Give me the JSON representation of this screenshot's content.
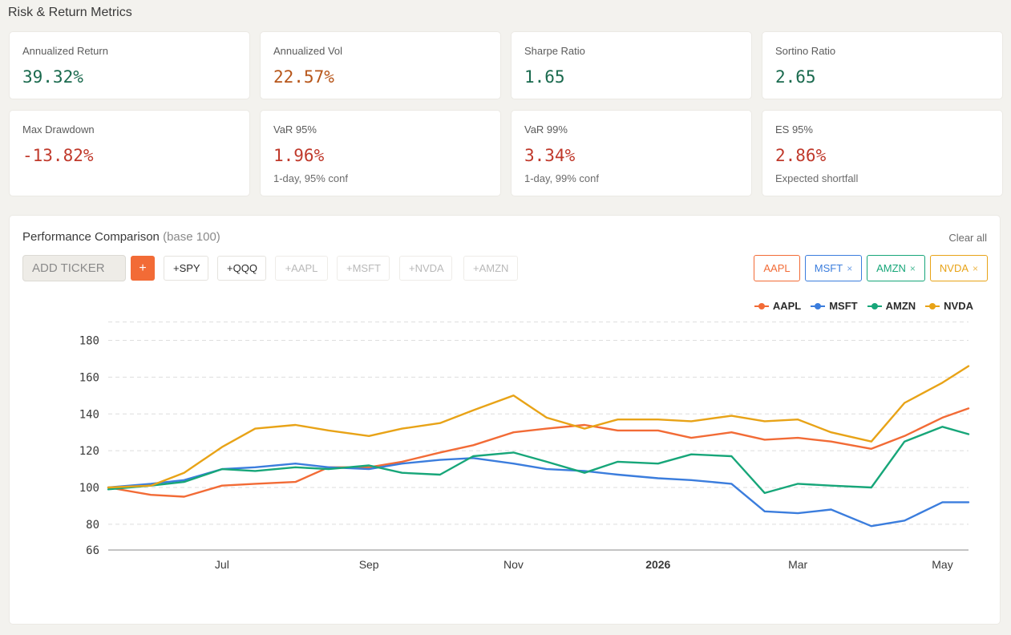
{
  "section_title": "Risk & Return Metrics",
  "metrics": [
    {
      "label": "Annualized Return",
      "value": "39.32%",
      "sub": "",
      "color": "#1a6a4e"
    },
    {
      "label": "Annualized Vol",
      "value": "22.57%",
      "sub": "",
      "color": "#b7561a"
    },
    {
      "label": "Sharpe Ratio",
      "value": "1.65",
      "sub": "",
      "color": "#1a6a4e"
    },
    {
      "label": "Sortino Ratio",
      "value": "2.65",
      "sub": "",
      "color": "#1a6a4e"
    },
    {
      "label": "Max Drawdown",
      "value": "-13.82%",
      "sub": "",
      "color": "#c0392b"
    },
    {
      "label": "VaR 95%",
      "value": "1.96%",
      "sub": "1-day, 95% conf",
      "color": "#c0392b"
    },
    {
      "label": "VaR 99%",
      "value": "3.34%",
      "sub": "1-day, 99% conf",
      "color": "#c0392b"
    },
    {
      "label": "ES 95%",
      "value": "2.86%",
      "sub": "Expected shortfall",
      "color": "#c0392b"
    }
  ],
  "perf": {
    "title": "Performance Comparison",
    "title_muted": "(base 100)",
    "clear_all": "Clear all",
    "input_placeholder": "ADD TICKER",
    "add_label": "+",
    "presets": [
      {
        "label": "+SPY",
        "enabled": true
      },
      {
        "label": "+QQQ",
        "enabled": true
      },
      {
        "label": "+AAPL",
        "enabled": false
      },
      {
        "label": "+MSFT",
        "enabled": false
      },
      {
        "label": "+NVDA",
        "enabled": false
      },
      {
        "label": "+AMZN",
        "enabled": false
      }
    ],
    "chips": [
      {
        "label": "AAPL",
        "removable": false,
        "color": "#f26b36"
      },
      {
        "label": "MSFT",
        "removable": true,
        "color": "#3b7ddd"
      },
      {
        "label": "AMZN",
        "removable": true,
        "color": "#17a679"
      },
      {
        "label": "NVDA",
        "removable": true,
        "color": "#e8a317"
      }
    ],
    "remove_glyph": "×"
  },
  "chart_data": {
    "type": "line",
    "title": "",
    "xlabel": "",
    "ylabel": "",
    "x_ticks": [
      {
        "label": "Jul",
        "date": "2025-07-01",
        "bold": false
      },
      {
        "label": "Sep",
        "date": "2025-09-01",
        "bold": false
      },
      {
        "label": "Nov",
        "date": "2025-11-01",
        "bold": false
      },
      {
        "label": "2026",
        "date": "2026-01-01",
        "bold": true
      },
      {
        "label": "Mar",
        "date": "2026-03-01",
        "bold": false
      },
      {
        "label": "May",
        "date": "2026-05-01",
        "bold": false
      }
    ],
    "xlim": [
      "2025-05-14",
      "2026-05-12"
    ],
    "y_ticks": [
      66,
      80,
      100,
      120,
      140,
      160,
      180
    ],
    "ylim": [
      66,
      192
    ],
    "grid": true,
    "legend_position": "top-right",
    "dates": [
      "2025-05-14",
      "2025-06-01",
      "2025-06-15",
      "2025-07-01",
      "2025-07-15",
      "2025-08-01",
      "2025-08-15",
      "2025-09-01",
      "2025-09-15",
      "2025-10-01",
      "2025-10-15",
      "2025-11-01",
      "2025-11-15",
      "2025-12-01",
      "2025-12-15",
      "2026-01-01",
      "2026-01-15",
      "2026-02-01",
      "2026-02-15",
      "2026-03-01",
      "2026-03-15",
      "2026-04-01",
      "2026-04-15",
      "2026-05-01",
      "2026-05-12"
    ],
    "series": [
      {
        "name": "AAPL",
        "color": "#f26b36",
        "values": [
          100,
          96,
          95,
          101,
          102,
          103,
          111,
          111,
          114,
          119,
          123,
          130,
          132,
          134,
          131,
          131,
          127,
          130,
          126,
          127,
          125,
          121,
          128,
          138,
          143
        ]
      },
      {
        "name": "MSFT",
        "color": "#3b7ddd",
        "values": [
          100,
          102,
          104,
          110,
          111,
          113,
          111,
          110,
          113,
          115,
          116,
          113,
          110,
          109,
          107,
          105,
          104,
          102,
          87,
          86,
          88,
          79,
          82,
          92,
          92
        ]
      },
      {
        "name": "AMZN",
        "color": "#17a679",
        "values": [
          99,
          101,
          103,
          110,
          109,
          111,
          110,
          112,
          108,
          107,
          117,
          119,
          114,
          108,
          114,
          113,
          118,
          117,
          97,
          102,
          101,
          100,
          125,
          133,
          129
        ]
      },
      {
        "name": "NVDA",
        "color": "#e8a317",
        "values": [
          100,
          101,
          108,
          122,
          132,
          134,
          131,
          128,
          132,
          135,
          142,
          150,
          138,
          132,
          137,
          137,
          136,
          139,
          136,
          137,
          130,
          125,
          146,
          157,
          166
        ]
      }
    ]
  }
}
